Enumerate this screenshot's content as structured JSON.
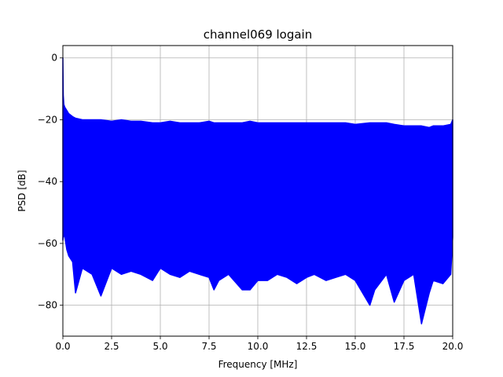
{
  "chart_data": {
    "type": "line",
    "title": "channel069 logain",
    "xlabel": "Frequency [MHz]",
    "ylabel": "PSD [dB]",
    "xlim": [
      0,
      20
    ],
    "ylim": [
      -90,
      4
    ],
    "xticks": [
      0,
      2.5,
      5,
      7.5,
      10,
      12.5,
      15,
      17.5,
      20
    ],
    "xtick_labels": [
      "0.0",
      "2.5",
      "5.0",
      "7.5",
      "10.0",
      "12.5",
      "15.0",
      "17.5",
      "20.0"
    ],
    "yticks": [
      0,
      -20,
      -40,
      -60,
      -80
    ],
    "ytick_labels": [
      "0",
      "−20",
      "−40",
      "−60",
      "−80"
    ],
    "grid": true,
    "series": [
      {
        "color": "#0000ff",
        "x": [
          0.0,
          0.02,
          0.05,
          0.1,
          0.2,
          0.3,
          0.5,
          0.65,
          1.0,
          1.5,
          1.95,
          2.5,
          3.0,
          3.5,
          4.0,
          4.6,
          5.0,
          5.5,
          6.0,
          6.5,
          7.0,
          7.5,
          7.75,
          8.0,
          8.5,
          9.2,
          9.6,
          10.0,
          10.5,
          11.0,
          11.5,
          12.0,
          12.5,
          12.9,
          13.5,
          14.0,
          14.5,
          15.0,
          15.75,
          16.0,
          16.6,
          17.0,
          17.5,
          18.0,
          18.4,
          18.8,
          19.0,
          19.5,
          19.9,
          20.0
        ],
        "upper": [
          0,
          -12,
          -15,
          -16,
          -17,
          -18,
          -19,
          -19.5,
          -20,
          -20,
          -20,
          -20.5,
          -20,
          -20.5,
          -20.5,
          -21,
          -21,
          -20.5,
          -21,
          -21,
          -21,
          -20.5,
          -21,
          -21,
          -21,
          -21,
          -20.5,
          -21,
          -21,
          -21,
          -21,
          -21,
          -21,
          -21,
          -21,
          -21,
          -21,
          -21.5,
          -21,
          -21,
          -21,
          -21.5,
          -22,
          -22,
          -22,
          -22.5,
          -22,
          -22,
          -21.5,
          -20
        ],
        "lower": [
          -59,
          -58,
          -57,
          -58,
          -62,
          -64,
          -66,
          -76,
          -68,
          -70,
          -77,
          -68,
          -70,
          -69,
          -70,
          -72,
          -68,
          -70,
          -71,
          -69,
          -70,
          -71,
          -75,
          -72,
          -70,
          -75,
          -75,
          -72,
          -72,
          -70,
          -71,
          -73,
          -71,
          -70,
          -72,
          -71,
          -70,
          -72,
          -80,
          -75,
          -70,
          -79,
          -72,
          -70,
          -86,
          -76,
          -72,
          -73,
          -70,
          -58
        ]
      }
    ]
  }
}
